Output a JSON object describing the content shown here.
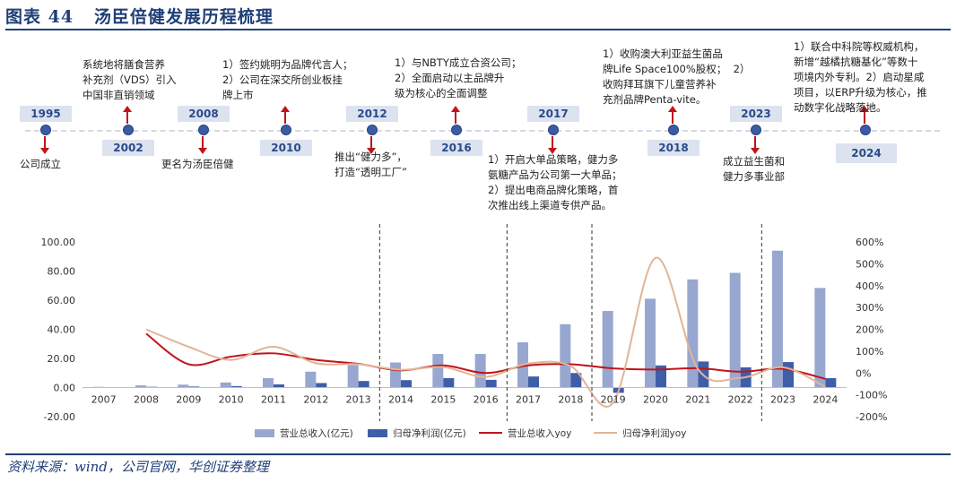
{
  "title": "图表 44   汤臣倍健发展历程梳理",
  "source": "资料来源：wind，公司官网，华创证券整理",
  "timeline": {
    "years": [
      "1995",
      "2002",
      "2008",
      "2010",
      "2012",
      "2016",
      "2017",
      "2018",
      "2023",
      "2024"
    ],
    "events": {
      "e1995": "公司成立",
      "e2002": "系统地将膳食营养\n补充剂（VDS）引入\n中国非直销领域",
      "e2008": "更名为汤臣倍健",
      "e2010": "1）签约姚明为品牌代言人；\n2）公司在深交所创业板挂\n牌上市",
      "e2012": "推出“健力多”，\n打造“透明工厂”",
      "e2016": "1）与NBTY成立合资公司；\n2）全面启动以主品牌升\n级为核心的全面调整",
      "e2017": "1）开启大单品策略，健力多\n氨糖产品为公司第一大单品；\n2）提出电商品牌化策略，首\n次推出线上渠道专供产品。",
      "e2018": "1）收购澳大利亚益生菌品\n牌Life Space100%股权；  2）\n收购拜耳旗下儿童营养补\n充剂品牌Penta-vite。",
      "e2023": "成立益生菌和\n健力多事业部",
      "e2024": "1）联合中科院等权威机构，\n新增“越橘抗糖基化”等数十\n项境内外专利。2）启动星咸\n项目，以ERP升级为核心，推\n动数字化战略落地。"
    }
  },
  "chart_data": {
    "type": "bar",
    "categories": [
      "2007",
      "2008",
      "2009",
      "2010",
      "2011",
      "2012",
      "2013",
      "2014",
      "2015",
      "2016",
      "2017",
      "2018",
      "2019",
      "2020",
      "2021",
      "2022",
      "2023",
      "2024"
    ],
    "series": [
      {
        "name": "营业总收入(亿元)",
        "type": "bar",
        "axis": "left",
        "color": "#98a7cf",
        "values": [
          0.5,
          1.5,
          2.0,
          3.5,
          6.5,
          10.9,
          15.4,
          17.2,
          23.1,
          23.1,
          31.1,
          43.5,
          52.6,
          61.0,
          74.3,
          78.8,
          94.0,
          68.4
        ]
      },
      {
        "name": "归母净利润(亿元)",
        "type": "bar",
        "axis": "left",
        "color": "#3f5ea8",
        "values": [
          0.1,
          0.5,
          0.7,
          1.0,
          2.2,
          3.1,
          4.5,
          5.1,
          6.5,
          5.3,
          7.6,
          10.0,
          -3.6,
          15.2,
          17.9,
          13.9,
          17.5,
          6.5
        ]
      },
      {
        "name": "营业总收入yoy",
        "type": "line",
        "axis": "right",
        "color": "#c0141a",
        "values": [
          null,
          180,
          40,
          75,
          90,
          60,
          42,
          12,
          35,
          0,
          35,
          40,
          21,
          16,
          22,
          6,
          19,
          -27
        ]
      },
      {
        "name": "归母净利润yoy",
        "type": "line",
        "axis": "right",
        "color": "#e2b497",
        "values": [
          null,
          200,
          120,
          60,
          120,
          45,
          40,
          15,
          27,
          -18,
          43,
          32,
          -136,
          527,
          18,
          -22,
          26,
          -63
        ]
      }
    ],
    "ylim": [
      -20,
      100
    ],
    "yticks": [
      "-20.00",
      "0.00",
      "20.00",
      "40.00",
      "60.00",
      "80.00",
      "100.00"
    ],
    "y2lim": [
      -200,
      600
    ],
    "y2ticks": [
      "-200%",
      "-100%",
      "0%",
      "100%",
      "200%",
      "300%",
      "400%",
      "500%",
      "600%"
    ],
    "dividers_after": [
      "2013",
      "2016",
      "2018",
      "2022"
    ],
    "legend_position": "bottom"
  }
}
